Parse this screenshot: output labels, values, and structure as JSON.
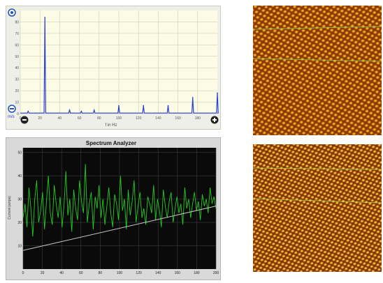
{
  "fft": {
    "ylabel": "m/s",
    "xlabel": "f in Hz",
    "y_ticks": [
      "80",
      "70",
      "60",
      "50",
      "40",
      "30",
      "20",
      "10",
      "0"
    ],
    "x_ticks": [
      "0",
      "20",
      "40",
      "60",
      "80",
      "100",
      "120",
      "140",
      "160",
      "180"
    ],
    "colors": {
      "background": "#fbfbe6",
      "grid": "#c9c6a8",
      "trace": "#2b3fd6"
    }
  },
  "spectrum": {
    "title": "Spectrum Analyzer",
    "ylabel": "Current (amps)",
    "y_ticks": [
      "50",
      "40",
      "30",
      "20",
      "10"
    ],
    "x_ticks": [
      "0",
      "20",
      "40",
      "60",
      "80",
      "100",
      "120",
      "140",
      "160",
      "180",
      "200"
    ],
    "colors": {
      "background": "#0a0a0a",
      "grid": "#3c3c3c",
      "trace": "#22cc22",
      "trend": "#c8c8c8"
    }
  },
  "chart_data": [
    {
      "type": "line",
      "xlabel": "f in Hz",
      "ylabel": "m/s",
      "xlim": [
        0,
        200
      ],
      "ylim": [
        0,
        90
      ],
      "x_ticks": [
        0,
        20,
        40,
        60,
        80,
        100,
        120,
        140,
        160,
        180
      ],
      "y_ticks": [
        0,
        10,
        20,
        30,
        40,
        50,
        60,
        70,
        80
      ],
      "peaks": [
        {
          "x": 8,
          "y": 2
        },
        {
          "x": 25,
          "y": 84
        },
        {
          "x": 50,
          "y": 3
        },
        {
          "x": 62,
          "y": 2
        },
        {
          "x": 75,
          "y": 3
        },
        {
          "x": 100,
          "y": 7
        },
        {
          "x": 125,
          "y": 7
        },
        {
          "x": 150,
          "y": 7
        },
        {
          "x": 175,
          "y": 14
        },
        {
          "x": 200,
          "y": 18
        }
      ]
    },
    {
      "type": "line",
      "title": "Spectrum Analyzer",
      "ylabel": "Current (amps)",
      "xlim": [
        0,
        200
      ],
      "ylim": [
        0,
        52
      ],
      "x_ticks": [
        0,
        20,
        40,
        60,
        80,
        100,
        120,
        140,
        160,
        180,
        200
      ],
      "y_ticks": [
        10,
        20,
        30,
        40,
        50
      ],
      "series": [
        {
          "values": [
            22,
            28,
            18,
            35,
            26,
            14,
            30,
            38,
            20,
            25,
            33,
            17,
            29,
            40,
            24,
            19,
            36,
            28,
            22,
            31,
            18,
            27,
            42,
            23,
            30,
            16,
            34,
            26,
            21,
            38,
            29,
            24,
            45,
            20,
            28,
            33,
            17,
            31,
            26,
            36,
            22,
            30,
            19,
            27,
            35,
            24,
            18,
            32,
            28,
            21,
            40,
            25,
            30,
            17,
            34,
            23,
            29,
            38,
            20,
            27,
            33,
            22,
            26,
            19,
            31,
            28,
            24,
            36,
            21,
            30,
            25,
            18,
            34,
            27,
            22,
            29,
            33,
            20,
            26,
            31,
            24,
            28,
            19,
            35,
            26,
            30,
            22,
            28,
            33,
            25,
            29,
            21,
            32,
            27,
            30,
            24,
            35,
            28,
            31,
            26
          ]
        },
        {
          "trend": [
            [
              0,
              8
            ],
            [
              200,
              27
            ]
          ]
        }
      ]
    }
  ]
}
